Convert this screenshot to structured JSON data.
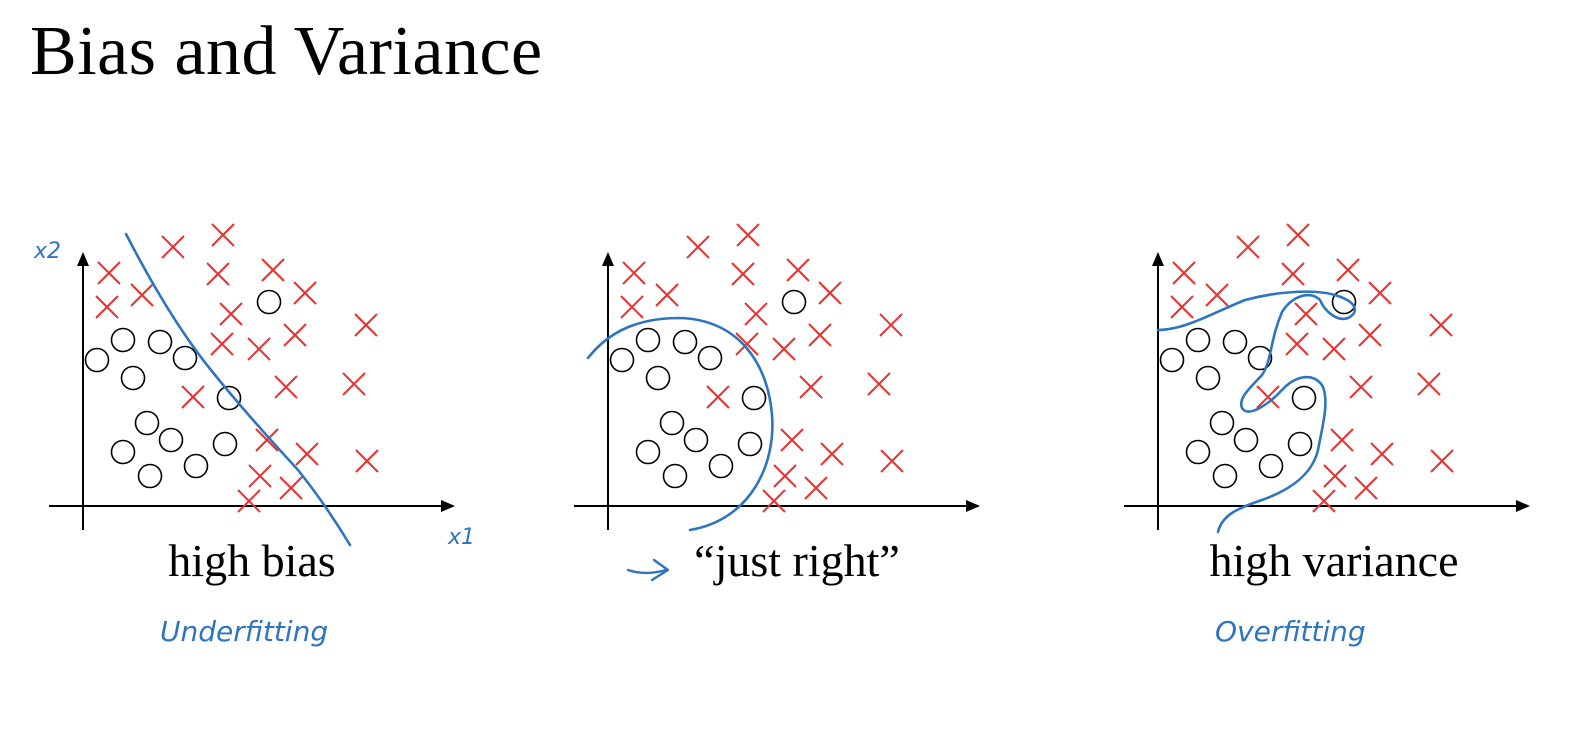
{
  "slide": {
    "title": "Bias and Variance"
  },
  "colors": {
    "cross": "#e8322f",
    "circle": "#000000",
    "ink": "#2e75c0",
    "axis": "#000000"
  },
  "panels": [
    {
      "caption": "high bias",
      "note": "Underfitting",
      "boundary_kind": "straight line",
      "has_axis_labels": true
    },
    {
      "caption": "“just right”",
      "note": "",
      "boundary_kind": "smooth curve",
      "has_axis_labels": false
    },
    {
      "caption": "high variance",
      "note": "Overfitting",
      "boundary_kind": "wiggly curve",
      "has_axis_labels": false
    }
  ],
  "axis_labels": {
    "x": "x1",
    "y": "x2"
  },
  "marks": {
    "circle_count": 13,
    "cross_count": 25
  }
}
